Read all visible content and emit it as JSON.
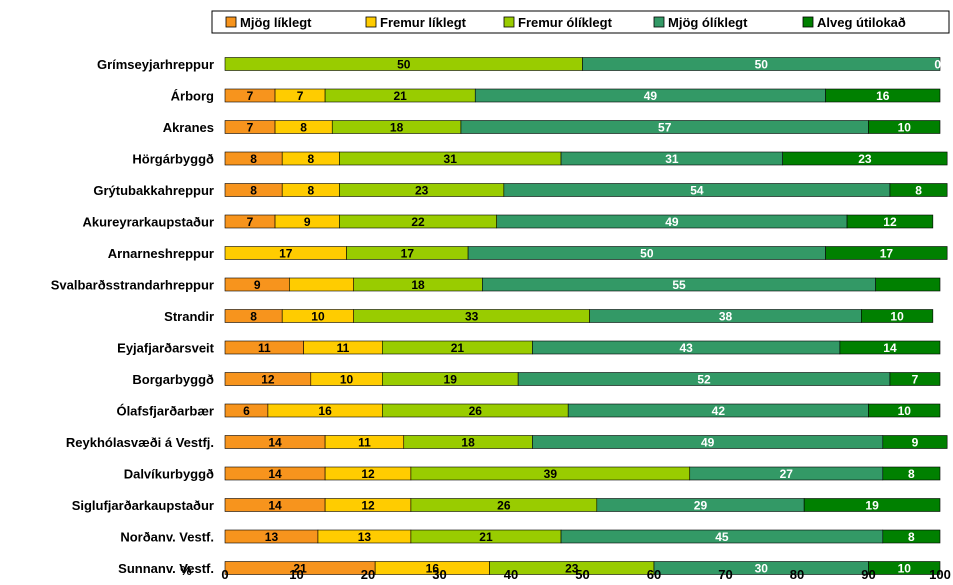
{
  "chart_data": {
    "type": "bar",
    "orientation": "horizontal",
    "stacked": true,
    "title": "",
    "xlabel": "%",
    "ylabel": "",
    "xlim": [
      0,
      100
    ],
    "xticks": [
      0,
      10,
      20,
      30,
      40,
      50,
      60,
      70,
      80,
      90,
      100
    ],
    "grid": false,
    "legend_position": "top",
    "categories": [
      "Grímseyjarhreppur",
      "Árborg",
      "Akranes",
      "Hörgárbyggð",
      "Grýtubakkahreppur",
      "Akureyrarkaupstaður",
      "Arnarneshreppur",
      "Svalbarðsstrandarhreppur",
      "Strandir",
      "Eyjafjarðarsveit",
      "Borgarbyggð",
      "Ólafsfjarðarbær",
      "Reykhólasvæði á Vestfj.",
      "Dalvíkurbyggð",
      "Siglufjarðarkaupstaður",
      "Norðanv. Vestf.",
      "Sunnanv. Vestf."
    ],
    "series": [
      {
        "name": "Mjög líklegt",
        "color": "#f7941d",
        "label_color": "#000000",
        "values": [
          0,
          7,
          7,
          8,
          8,
          7,
          0,
          9,
          8,
          11,
          12,
          6,
          14,
          14,
          14,
          13,
          21
        ],
        "labels": [
          "",
          "7",
          "7",
          "8",
          "8",
          "7",
          "",
          "9",
          "8",
          "11",
          "12",
          "6",
          "14",
          "14",
          "14",
          "13",
          "21"
        ]
      },
      {
        "name": "Fremur líklegt",
        "color": "#ffcc00",
        "label_color": "#000000",
        "values": [
          0,
          7,
          8,
          8,
          8,
          9,
          17,
          9,
          10,
          11,
          10,
          16,
          11,
          12,
          12,
          13,
          16
        ],
        "labels": [
          "",
          "7",
          "8",
          "8",
          "8",
          "9",
          "17",
          "",
          "10",
          "11",
          "10",
          "16",
          "11",
          "12",
          "12",
          "13",
          "16"
        ]
      },
      {
        "name": "Fremur ólíklegt",
        "color": "#99cc00",
        "label_color": "#000000",
        "values": [
          50,
          21,
          18,
          31,
          23,
          22,
          17,
          18,
          33,
          21,
          19,
          26,
          18,
          39,
          26,
          21,
          23
        ],
        "labels": [
          "50",
          "21",
          "18",
          "31",
          "23",
          "22",
          "17",
          "18",
          "33",
          "21",
          "19",
          "26",
          "18",
          "39",
          "26",
          "21",
          "23"
        ]
      },
      {
        "name": "Mjög ólíklegt",
        "color": "#339966",
        "label_color": "#ffffff",
        "values": [
          50,
          49,
          57,
          31,
          54,
          49,
          50,
          55,
          38,
          43,
          52,
          42,
          49,
          27,
          29,
          45,
          30
        ],
        "labels": [
          "50",
          "49",
          "57",
          "31",
          "54",
          "49",
          "50",
          "55",
          "38",
          "43",
          "52",
          "42",
          "49",
          "27",
          "29",
          "45",
          "30"
        ]
      },
      {
        "name": "Alveg útilokað",
        "color": "#008000",
        "label_color": "#ffffff",
        "values": [
          0,
          16,
          10,
          23,
          8,
          12,
          17,
          9,
          10,
          14,
          7,
          10,
          9,
          8,
          19,
          8,
          10
        ],
        "labels": [
          "0",
          "16",
          "10",
          "23",
          "8",
          "12",
          "17",
          "",
          "10",
          "14",
          "7",
          "10",
          "9",
          "8",
          "19",
          "8",
          "10"
        ]
      }
    ]
  }
}
